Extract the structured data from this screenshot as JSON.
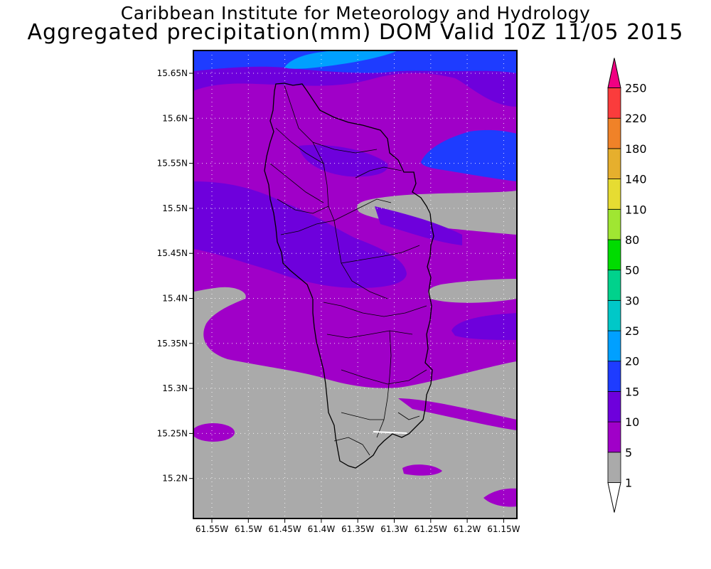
{
  "title": {
    "line1": "Caribbean Institute for Meteorology and Hydrology",
    "line2": "Aggregated precipitation(mm) DOM Valid 10Z 11/05 2015"
  },
  "map": {
    "lat_labels": [
      "15.65N",
      "15.6N",
      "15.55N",
      "15.5N",
      "15.45N",
      "15.4N",
      "15.35N",
      "15.3N",
      "15.25N",
      "15.2N"
    ],
    "lon_labels": [
      "61.55W",
      "61.5W",
      "61.45W",
      "61.4W",
      "61.35W",
      "61.3W",
      "61.25W",
      "61.2W",
      "61.15W"
    ],
    "background_color": "#aaaaaa",
    "grid": "dotted"
  },
  "colorbar": {
    "labels": [
      "1",
      "5",
      "10",
      "15",
      "20",
      "25",
      "30",
      "50",
      "80",
      "110",
      "140",
      "180",
      "220",
      "250"
    ],
    "colors": [
      "#ffffff",
      "#aaaaaa",
      "#a000c8",
      "#6e00dc",
      "#1e3cff",
      "#00a0ff",
      "#00c8c8",
      "#00d28c",
      "#00dc00",
      "#a0e632",
      "#e6dc32",
      "#e6af2d",
      "#f08228",
      "#fa3c3c",
      "#f00082"
    ]
  }
}
